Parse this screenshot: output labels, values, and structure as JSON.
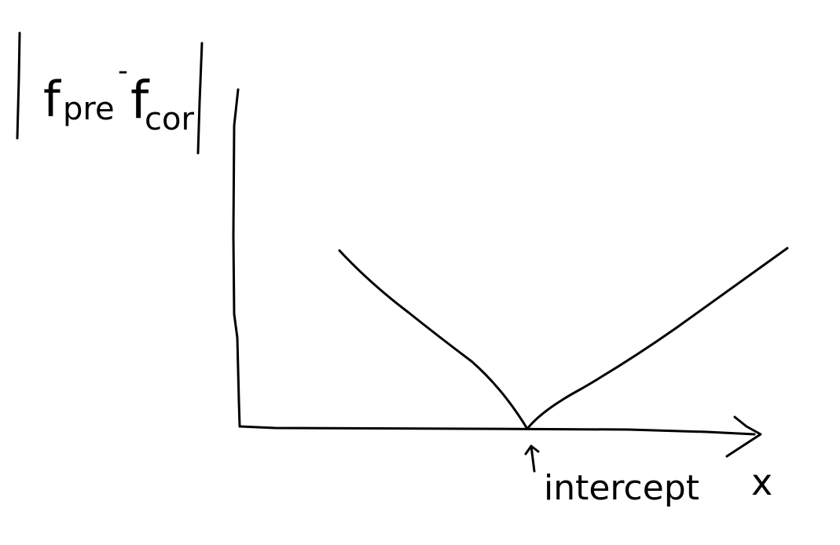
{
  "diagram": {
    "y_axis_label": "|f_pre - f_cor|",
    "y_axis_label_parts": {
      "f1": "f",
      "sub1": "pre",
      "minus": "-",
      "f2": "f",
      "sub2": "cor"
    },
    "x_axis_label": "x",
    "intercept_label": "intercept",
    "curve_shape": "V",
    "arrow_marker": "up-arrow-icon"
  },
  "colors": {
    "background": "#ffffff",
    "ink": "#000000"
  }
}
